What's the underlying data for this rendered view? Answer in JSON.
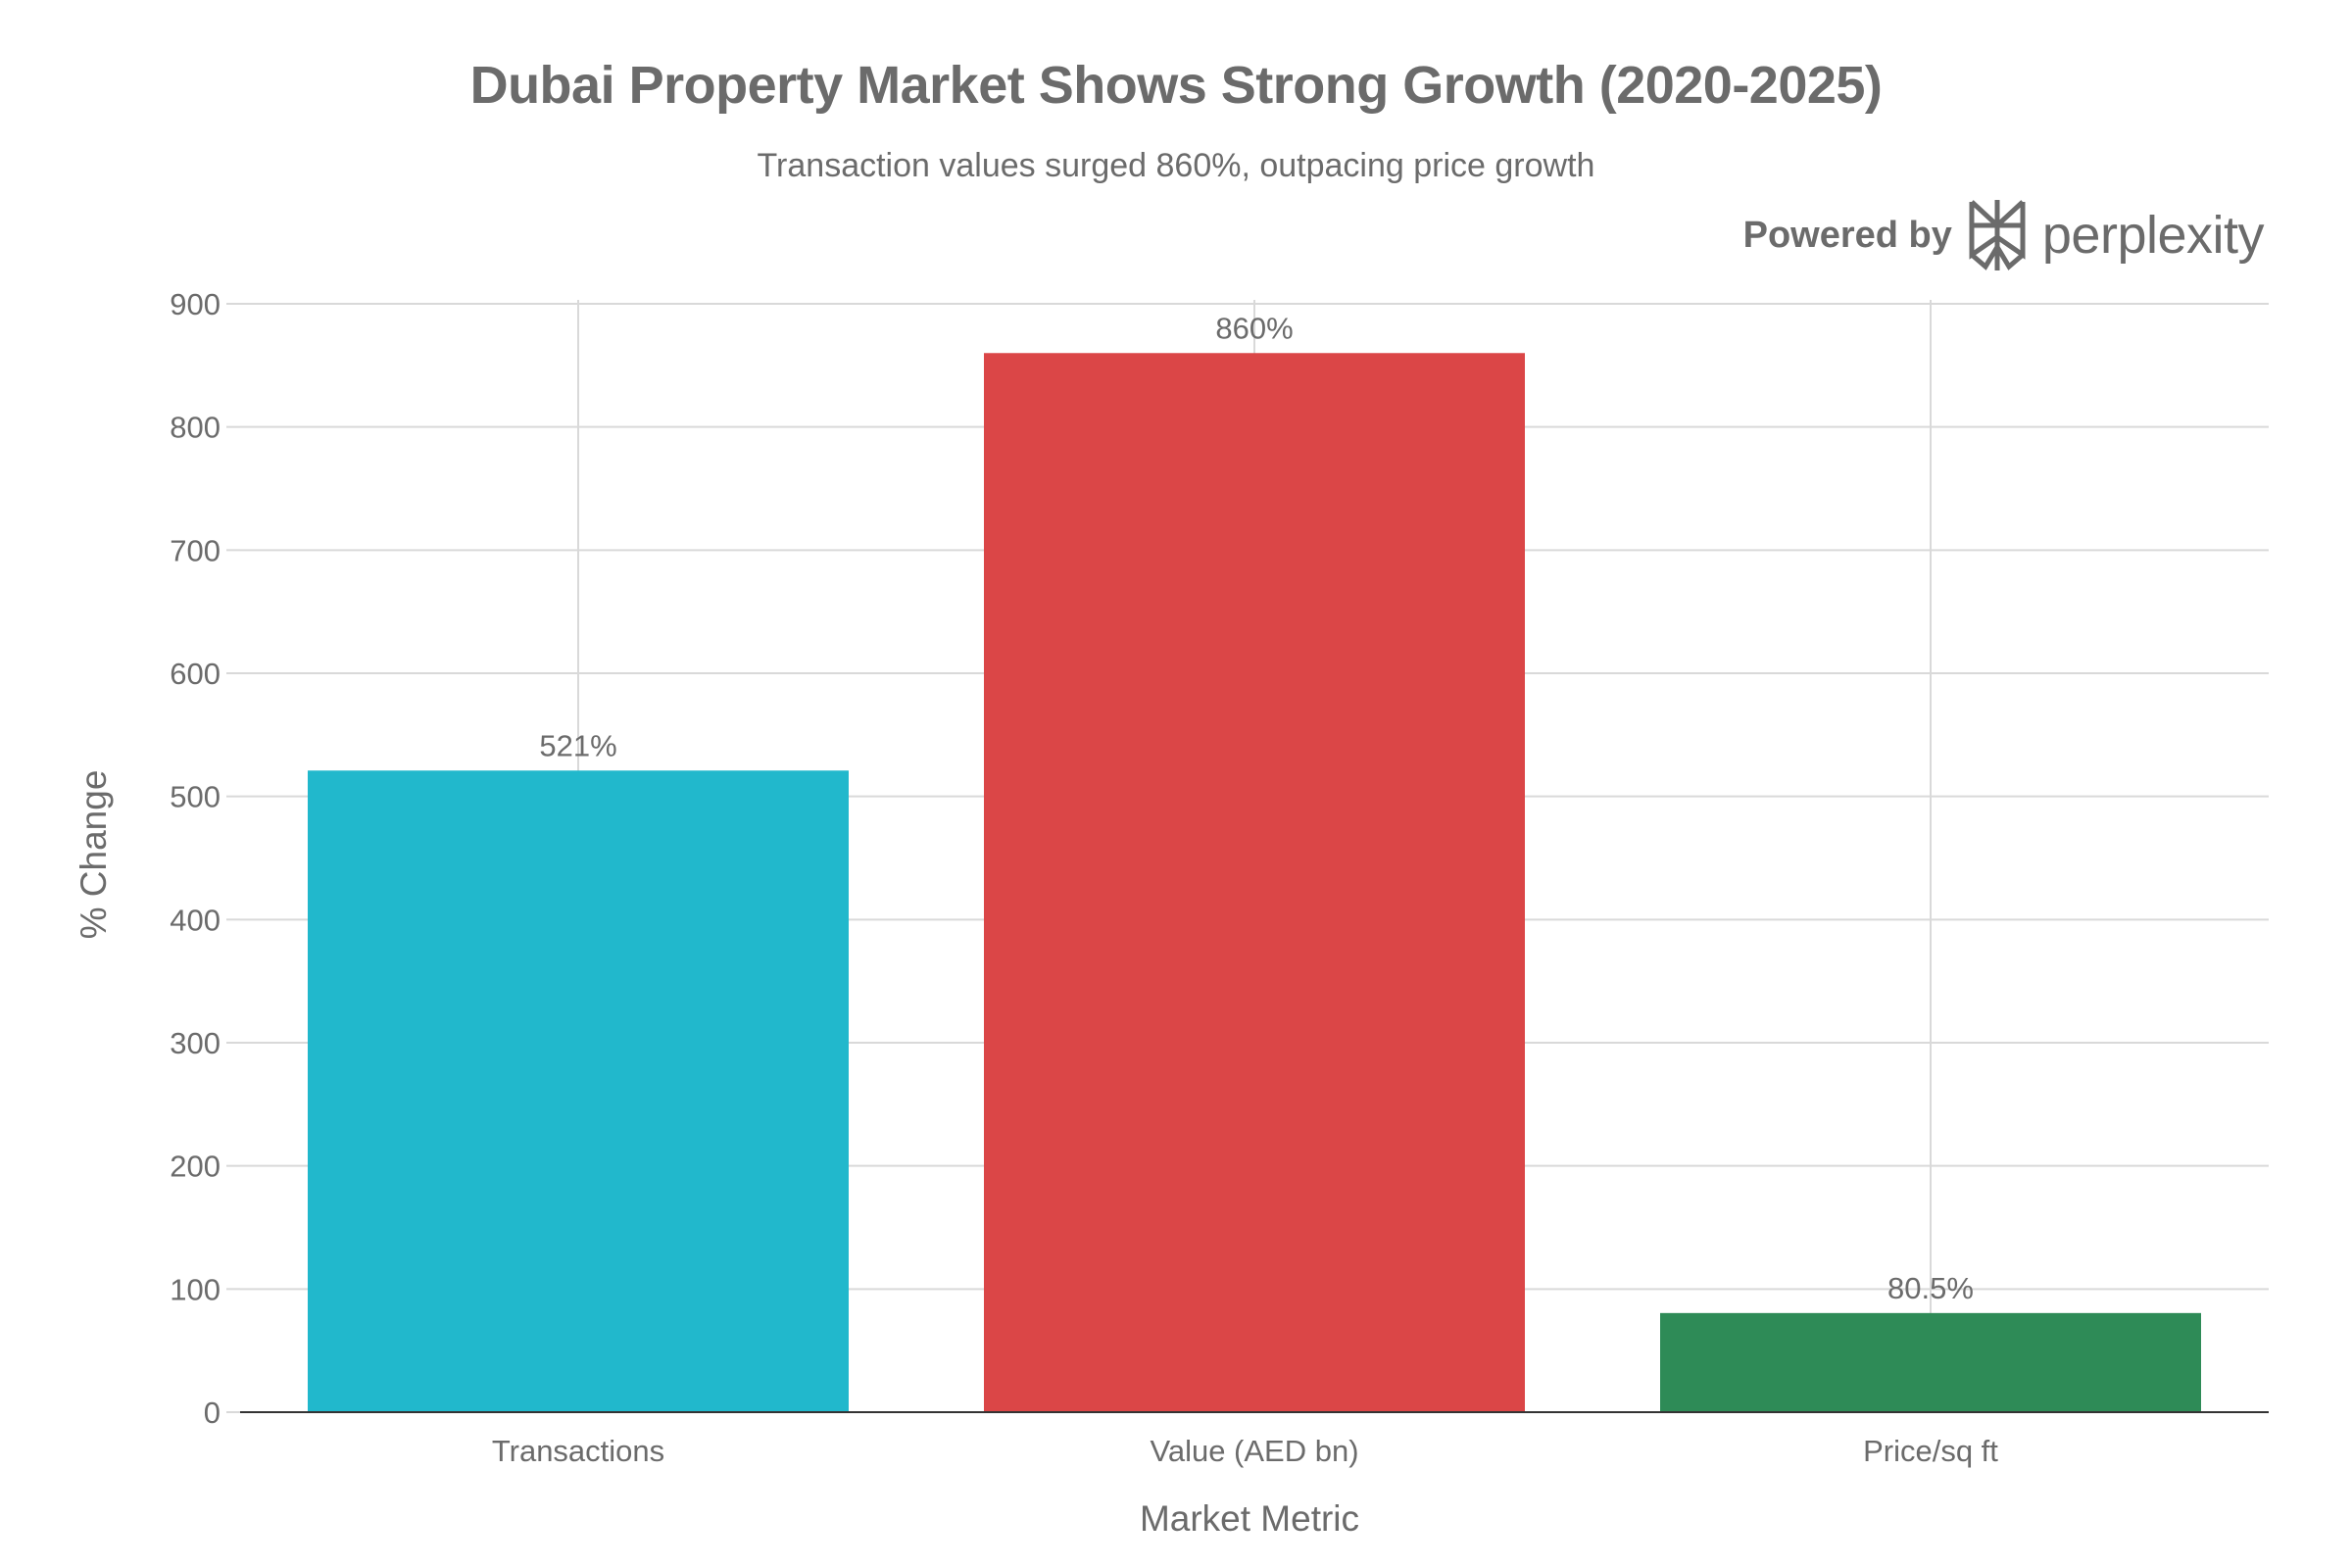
{
  "header": {
    "title": "Dubai Property Market Shows Strong Growth (2020-2025)",
    "subtitle": "Transaction values surged 860%, outpacing price growth",
    "powered_by": "Powered by",
    "brand": "perplexity",
    "brand_logo_icon": "perplexity-logo-icon"
  },
  "chart_data": {
    "type": "bar",
    "categories": [
      "Transactions",
      "Value (AED bn)",
      "Price/sq ft"
    ],
    "values": [
      521,
      860,
      80.5
    ],
    "data_labels": [
      "521%",
      "860%",
      "80.5%"
    ],
    "colors": [
      "#21b8cc",
      "#db4647",
      "#2e8b57"
    ],
    "xlabel": "Market Metric",
    "ylabel": "% Change",
    "ylim": [
      0,
      900
    ],
    "yticks": [
      0,
      100,
      200,
      300,
      400,
      500,
      600,
      700,
      800,
      900
    ],
    "grid": true,
    "legend": "none"
  }
}
